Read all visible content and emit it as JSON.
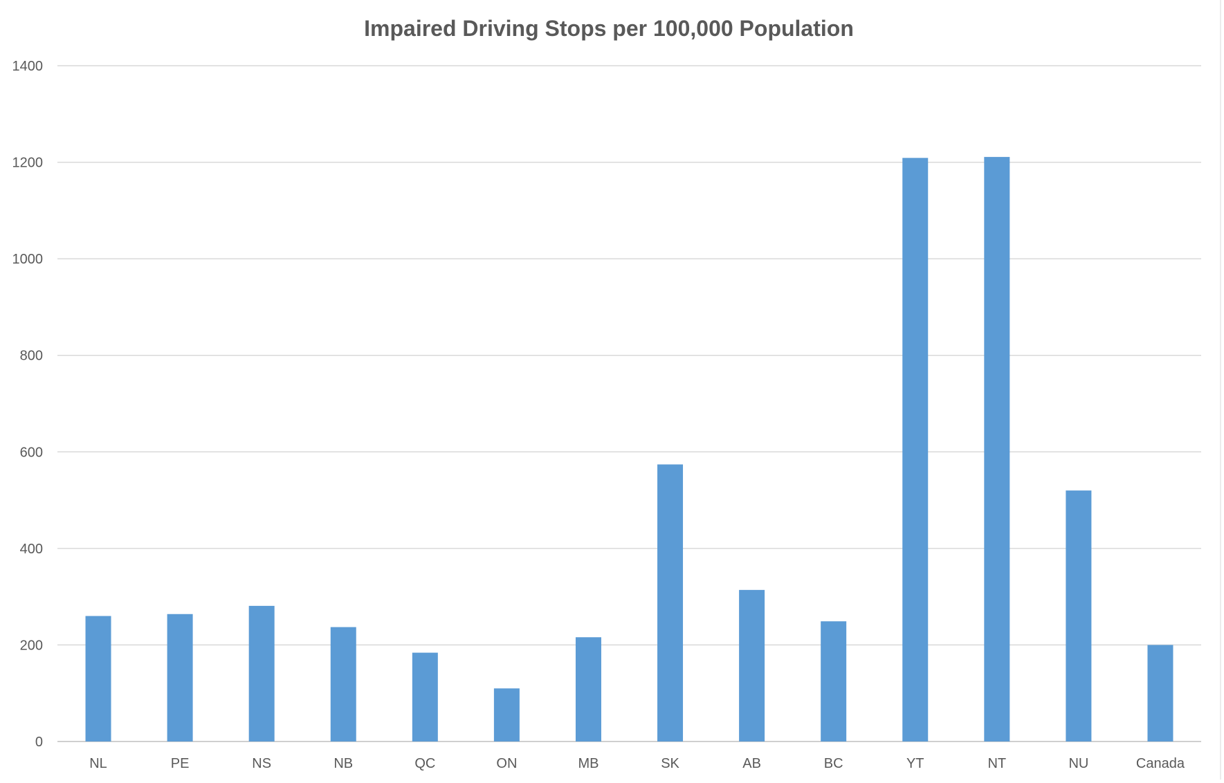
{
  "chart_data": {
    "type": "bar",
    "title": "Impaired Driving Stops per 100,000 Population",
    "xlabel": "",
    "ylabel": "",
    "categories": [
      "NL",
      "PE",
      "NS",
      "NB",
      "QC",
      "ON",
      "MB",
      "SK",
      "AB",
      "BC",
      "YT",
      "NT",
      "NU",
      "Canada"
    ],
    "series": [
      {
        "values": [
          260,
          264,
          281,
          237,
          184,
          110,
          216,
          574,
          314,
          249,
          1209,
          1211,
          520,
          200
        ]
      }
    ],
    "ylim": [
      0,
      1400
    ],
    "yticks": [
      0,
      200,
      400,
      600,
      800,
      1000,
      1200,
      1400
    ],
    "grid": true,
    "legend": "none",
    "colors": {
      "bar": "#5b9bd5",
      "grid": "#d9d9d9",
      "text": "#595959"
    }
  }
}
